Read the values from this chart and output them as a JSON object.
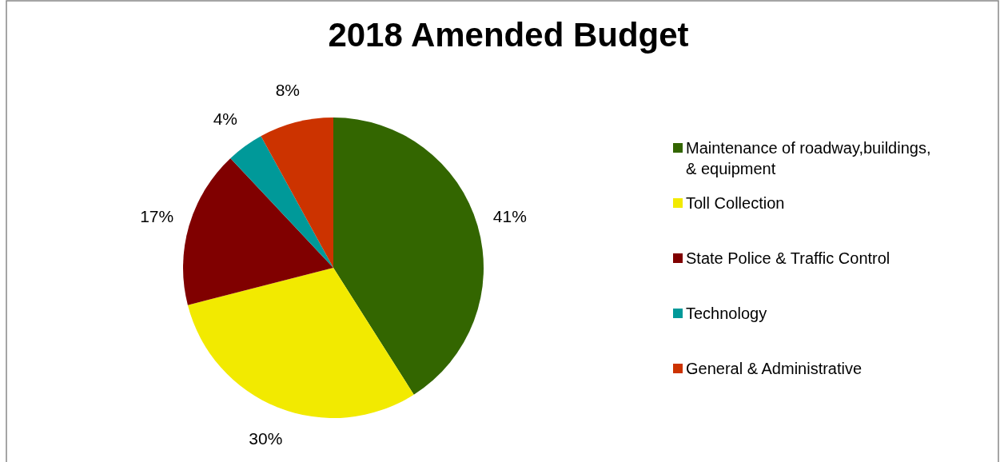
{
  "chart_data": {
    "type": "pie",
    "title": "2018 Amended Budget",
    "categories": [
      "Maintenance of roadway,buildings, & equipment",
      "Toll Collection",
      "State Police & Traffic Control",
      "Technology",
      "General & Administrative"
    ],
    "values": [
      41,
      30,
      17,
      4,
      8
    ],
    "value_labels": [
      "41%",
      "30%",
      "17%",
      "4%",
      "8%"
    ],
    "colors": [
      "#336600",
      "#f2ea00",
      "#800000",
      "#009999",
      "#cc3300"
    ],
    "legend": "right"
  }
}
